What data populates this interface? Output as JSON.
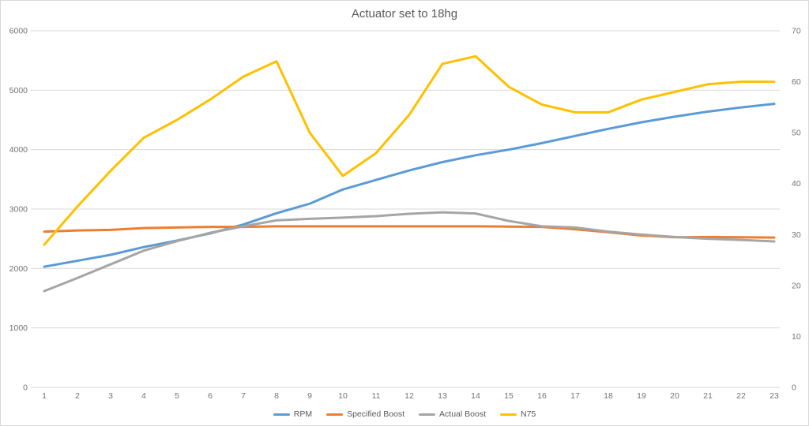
{
  "chart_data": {
    "type": "line",
    "title": "Actuator set to 18hg",
    "x": [
      1,
      2,
      3,
      4,
      5,
      6,
      7,
      8,
      9,
      10,
      11,
      12,
      13,
      14,
      15,
      16,
      17,
      18,
      19,
      20,
      21,
      22,
      23
    ],
    "xlabel": "",
    "ylabel_left": "",
    "ylabel_right": "",
    "y_left_axis": {
      "min": 0,
      "max": 6000,
      "step": 1000
    },
    "y_right_axis": {
      "min": 0,
      "max": 70,
      "step": 10
    },
    "grid": "horizontal-on",
    "legend_position": "bottom",
    "series": [
      {
        "name": "RPM",
        "axis": "left",
        "color": "#5B9BD5",
        "values": [
          2030,
          2130,
          2230,
          2360,
          2470,
          2590,
          2740,
          2930,
          3090,
          3330,
          3490,
          3650,
          3790,
          3905,
          4000,
          4110,
          4230,
          4350,
          4460,
          4555,
          4640,
          4710,
          4770
        ]
      },
      {
        "name": "Specified Boost",
        "axis": "left",
        "color": "#ED7D31",
        "values": [
          2620,
          2640,
          2650,
          2680,
          2690,
          2700,
          2700,
          2710,
          2710,
          2710,
          2710,
          2710,
          2710,
          2710,
          2705,
          2700,
          2660,
          2610,
          2555,
          2525,
          2530,
          2525,
          2520
        ]
      },
      {
        "name": "Actual Boost",
        "axis": "left",
        "color": "#A5A5A5",
        "values": [
          1620,
          1840,
          2070,
          2300,
          2460,
          2600,
          2710,
          2810,
          2835,
          2855,
          2880,
          2920,
          2945,
          2925,
          2800,
          2710,
          2690,
          2620,
          2570,
          2530,
          2500,
          2480,
          2455
        ]
      },
      {
        "name": "N75",
        "axis": "right",
        "color": "#FFC000",
        "values": [
          28,
          35.5,
          42.5,
          49,
          52.5,
          56.5,
          61,
          64,
          50,
          41.5,
          46,
          53.5,
          63.5,
          65,
          59,
          55.5,
          54,
          54,
          56.5,
          58,
          59.5,
          60,
          60
        ]
      }
    ]
  },
  "colors": {
    "gridline": "#D9D9D9",
    "chart_border": "#D9D9D9",
    "axis_text": "#737373",
    "title_text": "#595959",
    "background": "#FFFFFF"
  }
}
